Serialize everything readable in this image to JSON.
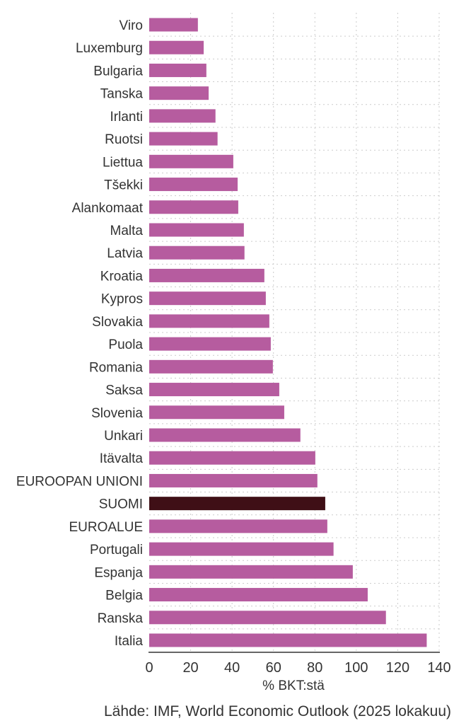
{
  "chart_data": {
    "type": "bar",
    "orientation": "horizontal",
    "categories": [
      "Viro",
      "Luxemburg",
      "Bulgaria",
      "Tanska",
      "Irlanti",
      "Ruotsi",
      "Liettua",
      "Tšekki",
      "Alankomaat",
      "Malta",
      "Latvia",
      "Kroatia",
      "Kypros",
      "Slovakia",
      "Puola",
      "Romania",
      "Saksa",
      "Slovenia",
      "Unkari",
      "Itävalta",
      "EUROOPAN UNIONI",
      "SUOMI",
      "EUROALUE",
      "Portugali",
      "Espanja",
      "Belgia",
      "Ranska",
      "Italia"
    ],
    "values": [
      23.5,
      26.3,
      27.6,
      28.7,
      32,
      33,
      40.6,
      42.7,
      43,
      45.7,
      46,
      55.6,
      56.3,
      58,
      58.7,
      59.7,
      62.8,
      65.2,
      73,
      80.2,
      81.2,
      85,
      86,
      89,
      98.3,
      105.5,
      114.3,
      134
    ],
    "highlight": "SUOMI",
    "xlabel": "% BKT:stä",
    "xlim": [
      0,
      140
    ],
    "xticks": [
      0,
      20,
      40,
      60,
      80,
      100,
      120,
      140
    ],
    "grid": true,
    "colors": {
      "bar": "#b65c9f",
      "highlight": "#3f0f16"
    }
  },
  "source": "Lähde: IMF, World Economic Outlook (2025 lokakuu)"
}
